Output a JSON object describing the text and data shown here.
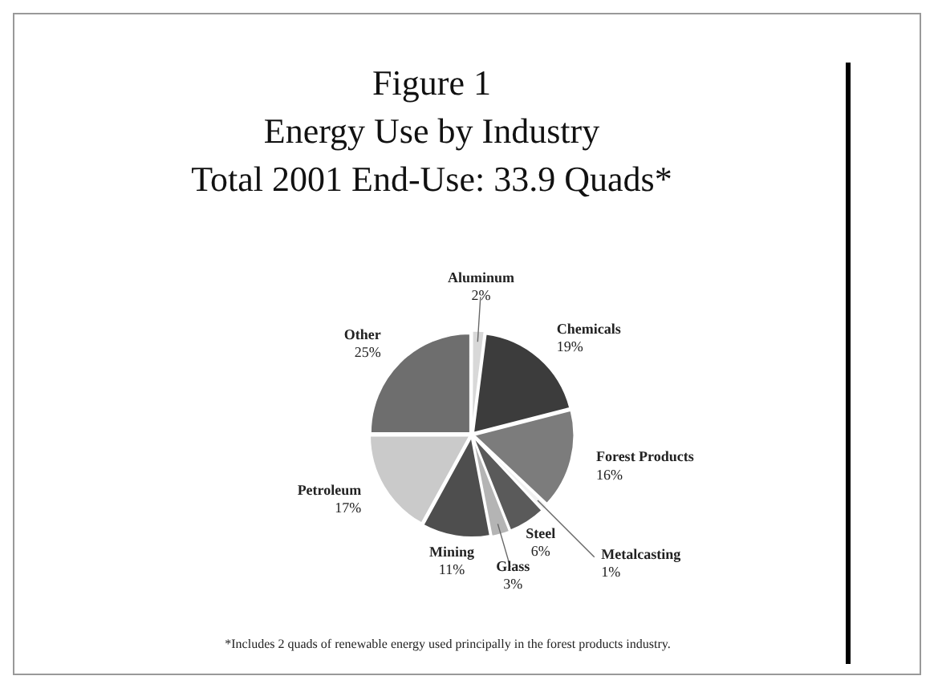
{
  "chart_data": {
    "type": "pie",
    "title": "Figure 1",
    "subtitle": "Energy Use by Industry",
    "annotations": [
      "Total 2001 End-Use:  33.9 Quads*",
      "*Includes 2 quads of renewable energy used principally in the forest products industry."
    ],
    "categories": [
      "Aluminum",
      "Chemicals",
      "Forest Products",
      "Metalcasting",
      "Steel",
      "Glass",
      "Mining",
      "Petroleum",
      "Other"
    ],
    "values": [
      2,
      19,
      16,
      1,
      6,
      3,
      11,
      17,
      25
    ],
    "value_labels": [
      "2%",
      "19%",
      "16%",
      "1%",
      "6%",
      "3%",
      "11%",
      "17%",
      "25%"
    ],
    "colors": [
      "#d8d8d8",
      "#3c3c3c",
      "#7c7c7c",
      "#f0f0f0",
      "#5a5a5a",
      "#b4b4b4",
      "#4e4e4e",
      "#cacaca",
      "#6e6e6e"
    ],
    "legend": false
  }
}
